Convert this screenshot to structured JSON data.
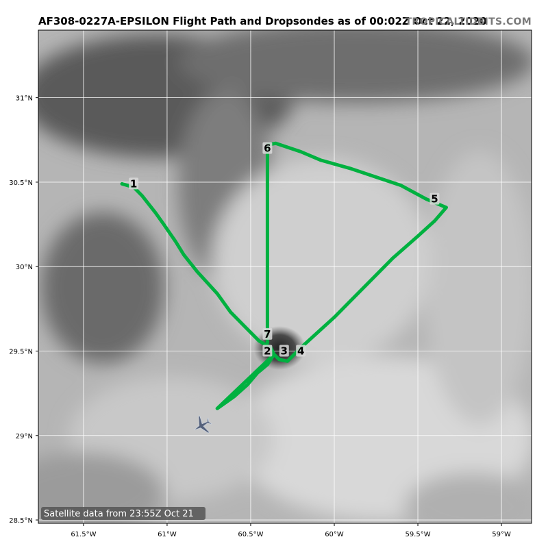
{
  "title": "AF308-0227A-EPSILON Flight Path and Dropsondes as of 00:02Z Oct 22, 2020",
  "brand": "TROPICALTIDBITS.COM",
  "satellite_note": "Satellite data from 23:55Z Oct 21",
  "map": {
    "lon_range": [
      -61.77,
      -58.82
    ],
    "lat_range": [
      28.48,
      31.4
    ],
    "x_ticks": [
      {
        "lon": -61.5,
        "label": "61.5°W"
      },
      {
        "lon": -61.0,
        "label": "61°W"
      },
      {
        "lon": -60.5,
        "label": "60.5°W"
      },
      {
        "lon": -60.0,
        "label": "60°W"
      },
      {
        "lon": -59.5,
        "label": "59.5°W"
      },
      {
        "lon": -59.0,
        "label": "59°W"
      }
    ],
    "y_ticks": [
      {
        "lat": 31.0,
        "label": "31°N"
      },
      {
        "lat": 30.5,
        "label": "30.5°N"
      },
      {
        "lat": 30.0,
        "label": "30°N"
      },
      {
        "lat": 29.5,
        "label": "29.5°N"
      },
      {
        "lat": 29.0,
        "label": "29°N"
      },
      {
        "lat": 28.5,
        "label": "28.5°N"
      }
    ],
    "colors": {
      "flight_path": "#00b140",
      "grid": "#ffffff",
      "label_box": "#d9d9d9"
    },
    "flight_path": [
      [
        -61.27,
        30.49
      ],
      [
        -61.2,
        30.47
      ],
      [
        -61.15,
        30.42
      ],
      [
        -61.07,
        30.32
      ],
      [
        -61.02,
        30.25
      ],
      [
        -60.95,
        30.15
      ],
      [
        -60.9,
        30.07
      ],
      [
        -60.82,
        29.97
      ],
      [
        -60.7,
        29.84
      ],
      [
        -60.62,
        29.73
      ],
      [
        -60.53,
        29.64
      ],
      [
        -60.45,
        29.56
      ],
      [
        -60.38,
        29.52
      ],
      [
        -60.36,
        29.48
      ],
      [
        -60.4,
        29.42
      ],
      [
        -60.46,
        29.37
      ],
      [
        -60.52,
        29.3
      ],
      [
        -60.6,
        29.23
      ],
      [
        -60.7,
        29.16
      ],
      [
        -60.36,
        29.48
      ],
      [
        -60.33,
        29.45
      ],
      [
        -60.28,
        29.44
      ],
      [
        -60.25,
        29.47
      ],
      [
        -60.2,
        29.52
      ],
      [
        -60.1,
        29.61
      ],
      [
        -60.0,
        29.7
      ],
      [
        -59.9,
        29.8
      ],
      [
        -59.8,
        29.9
      ],
      [
        -59.65,
        30.05
      ],
      [
        -59.5,
        30.18
      ],
      [
        -59.4,
        30.27
      ],
      [
        -59.33,
        30.35
      ],
      [
        -59.45,
        30.4
      ],
      [
        -59.6,
        30.48
      ],
      [
        -59.75,
        30.53
      ],
      [
        -59.9,
        30.58
      ],
      [
        -60.08,
        30.63
      ],
      [
        -60.2,
        30.68
      ],
      [
        -60.35,
        30.73
      ],
      [
        -60.4,
        30.72
      ],
      [
        -60.4,
        30.3
      ],
      [
        -60.4,
        29.95
      ],
      [
        -60.4,
        29.55
      ]
    ],
    "dropsondes": [
      {
        "label": "1",
        "lon": -61.2,
        "lat": 30.49
      },
      {
        "label": "2",
        "lon": -60.4,
        "lat": 29.5
      },
      {
        "label": "3",
        "lon": -60.3,
        "lat": 29.5
      },
      {
        "label": "4",
        "lon": -60.2,
        "lat": 29.5
      },
      {
        "label": "5",
        "lon": -59.4,
        "lat": 30.4
      },
      {
        "label": "6",
        "lon": -60.4,
        "lat": 30.7
      },
      {
        "label": "7",
        "lon": -60.4,
        "lat": 29.6
      }
    ],
    "aircraft": {
      "lon": -60.79,
      "lat": 29.06
    }
  }
}
